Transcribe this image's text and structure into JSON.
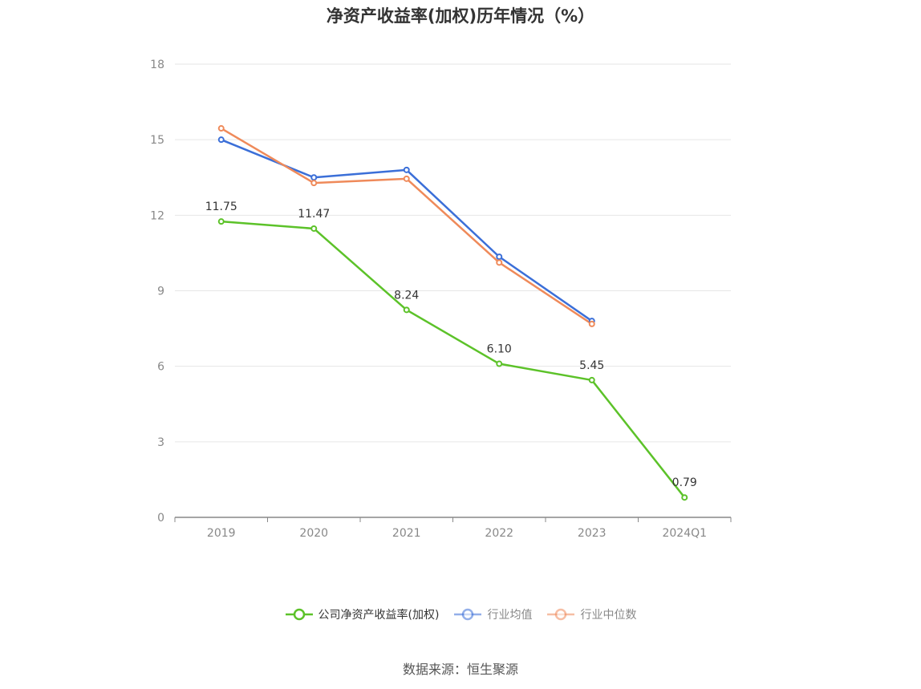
{
  "title": "净资产收益率(加权)历年情况（%）",
  "source": "数据来源：恒生聚源",
  "chart_data": {
    "type": "line",
    "categories": [
      "2019",
      "2020",
      "2021",
      "2022",
      "2023",
      "2024Q1"
    ],
    "ylim": [
      0,
      18
    ],
    "yticks": [
      "0",
      "3",
      "6",
      "9",
      "12",
      "15",
      "18"
    ],
    "grid": true,
    "legend_position": "bottom",
    "series": [
      {
        "name": "公司净资产收益率(加权)",
        "color": "#5cc229",
        "values": [
          11.75,
          11.47,
          8.24,
          6.1,
          5.45,
          0.79
        ],
        "labels": [
          "11.75",
          "11.47",
          "8.24",
          "6.10",
          "5.45",
          "0.79"
        ]
      },
      {
        "name": "行业均值",
        "color": "#3b6fd8",
        "values": [
          15.0,
          13.5,
          13.8,
          10.35,
          7.8,
          null
        ]
      },
      {
        "name": "行业中位数",
        "color": "#ef8a5a",
        "values": [
          15.45,
          13.28,
          13.45,
          10.12,
          7.68,
          null
        ]
      }
    ]
  }
}
